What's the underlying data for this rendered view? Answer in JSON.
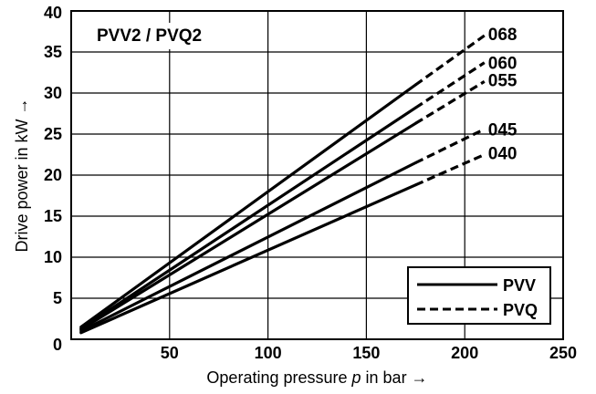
{
  "chart_data": {
    "type": "line",
    "title": "PVV2 / PVQ2",
    "xlabel": "Operating pressure p in bar →",
    "xlabel_parts": {
      "prefix": "Operating pressure ",
      "symbol": "p",
      "suffix": " in bar →"
    },
    "ylabel": "Drive power in kW →",
    "xlim": [
      0,
      250
    ],
    "ylim": [
      0,
      40
    ],
    "xticks": [
      "50",
      "100",
      "150",
      "200",
      "250"
    ],
    "yticks": [
      "0",
      "5",
      "10",
      "15",
      "20",
      "25",
      "30",
      "35",
      "40"
    ],
    "x_tick_values": [
      50,
      100,
      150,
      200,
      250
    ],
    "y_tick_values": [
      0,
      5,
      10,
      15,
      20,
      25,
      30,
      35,
      40
    ],
    "grid": true,
    "legend": {
      "position": "bottom-right",
      "entries": [
        {
          "label": "PVV",
          "style": "solid"
        },
        {
          "label": "PVQ",
          "style": "dashed"
        }
      ]
    },
    "series": [
      {
        "name": "068",
        "solid": [
          [
            5,
            1.5
          ],
          [
            175,
            31
          ]
        ],
        "dashed": [
          [
            175,
            31
          ],
          [
            210,
            37
          ]
        ]
      },
      {
        "name": "060",
        "solid": [
          [
            5,
            1.3
          ],
          [
            175,
            28.2
          ]
        ],
        "dashed": [
          [
            175,
            28.2
          ],
          [
            210,
            33.7
          ]
        ]
      },
      {
        "name": "055",
        "solid": [
          [
            5,
            1.2
          ],
          [
            175,
            26.3
          ]
        ],
        "dashed": [
          [
            175,
            26.3
          ],
          [
            210,
            31.4
          ]
        ]
      },
      {
        "name": "045",
        "solid": [
          [
            5,
            1.0
          ],
          [
            175,
            21.5
          ]
        ],
        "dashed": [
          [
            175,
            21.5
          ],
          [
            210,
            25.6
          ]
        ]
      },
      {
        "name": "040",
        "solid": [
          [
            5,
            0.8
          ],
          [
            175,
            18.8
          ]
        ],
        "dashed": [
          [
            175,
            18.8
          ],
          [
            210,
            22.5
          ]
        ]
      }
    ]
  }
}
